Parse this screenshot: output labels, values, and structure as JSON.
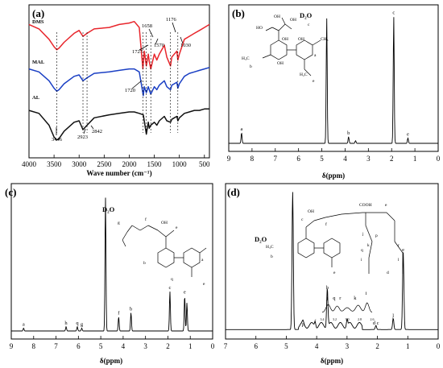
{
  "chart_data": [
    {
      "panel": "(a)",
      "type": "line",
      "xlabel": "Wave number (cm⁻¹)",
      "xlim": [
        4000,
        400
      ],
      "xticks": [
        "4000",
        "3500",
        "3000",
        "2500",
        "2000",
        "1500",
        "1000",
        "500"
      ],
      "series": [
        {
          "name": "DMS",
          "color": "#e8262c",
          "x": [
            4000,
            3800,
            3600,
            3500,
            3446,
            3400,
            3300,
            3100,
            3000,
            2923,
            2842,
            2700,
            2400,
            2200,
            2000,
            1900,
            1800,
            1727,
            1700,
            1658,
            1620,
            1600,
            1570,
            1500,
            1450,
            1400,
            1300,
            1250,
            1176,
            1150,
            1100,
            1050,
            1030,
            1000,
            900,
            800,
            700,
            600,
            500,
            400
          ],
          "y": [
            0.9,
            0.87,
            0.8,
            0.75,
            0.73,
            0.74,
            0.78,
            0.84,
            0.86,
            0.82,
            0.84,
            0.87,
            0.88,
            0.9,
            0.91,
            0.92,
            0.88,
            0.6,
            0.72,
            0.62,
            0.7,
            0.65,
            0.6,
            0.7,
            0.66,
            0.7,
            0.76,
            0.68,
            0.62,
            0.68,
            0.7,
            0.72,
            0.66,
            0.7,
            0.8,
            0.82,
            0.84,
            0.86,
            0.88,
            0.9
          ]
        },
        {
          "name": "MAL",
          "color": "#1a3fc4",
          "x": [
            4000,
            3800,
            3600,
            3500,
            3446,
            3400,
            3300,
            3100,
            3000,
            2923,
            2842,
            2700,
            2400,
            2200,
            2000,
            1900,
            1800,
            1720,
            1700,
            1658,
            1620,
            1600,
            1570,
            1500,
            1450,
            1400,
            1300,
            1250,
            1176,
            1150,
            1100,
            1050,
            1030,
            1000,
            900,
            800,
            700,
            600,
            500,
            400
          ],
          "y": [
            0.6,
            0.58,
            0.52,
            0.47,
            0.45,
            0.46,
            0.5,
            0.55,
            0.56,
            0.52,
            0.54,
            0.57,
            0.58,
            0.59,
            0.6,
            0.6,
            0.58,
            0.42,
            0.48,
            0.44,
            0.48,
            0.46,
            0.43,
            0.48,
            0.46,
            0.49,
            0.52,
            0.48,
            0.46,
            0.49,
            0.5,
            0.51,
            0.47,
            0.5,
            0.55,
            0.57,
            0.58,
            0.59,
            0.6,
            0.61
          ]
        },
        {
          "name": "AL",
          "color": "#111111",
          "x": [
            4000,
            3800,
            3600,
            3500,
            3446,
            3400,
            3300,
            3100,
            3000,
            2923,
            2842,
            2700,
            2400,
            2200,
            2000,
            1900,
            1800,
            1720,
            1700,
            1658,
            1620,
            1600,
            1570,
            1500,
            1450,
            1400,
            1300,
            1250,
            1176,
            1150,
            1100,
            1050,
            1030,
            1000,
            900,
            800,
            700,
            600,
            500,
            400
          ],
          "y": [
            0.32,
            0.3,
            0.22,
            0.14,
            0.12,
            0.13,
            0.18,
            0.24,
            0.25,
            0.19,
            0.22,
            0.27,
            0.29,
            0.3,
            0.31,
            0.31,
            0.3,
            0.29,
            0.25,
            0.16,
            0.24,
            0.2,
            0.22,
            0.24,
            0.22,
            0.25,
            0.28,
            0.25,
            0.24,
            0.26,
            0.27,
            0.28,
            0.25,
            0.27,
            0.3,
            0.31,
            0.32,
            0.32,
            0.33,
            0.33
          ]
        }
      ],
      "annotations": [
        "1727",
        "1658",
        "1176",
        "1570",
        "1030",
        "1720",
        "3446",
        "2923",
        "2842"
      ]
    },
    {
      "panel": "(b)",
      "type": "line",
      "xlabel": "δ(ppm)",
      "xlim": [
        9,
        0
      ],
      "xticks": [
        "9",
        "8",
        "7",
        "6",
        "5",
        "4",
        "3",
        "2",
        "1",
        "0"
      ],
      "solvent": "D₂O",
      "peaks": [
        {
          "label": "a",
          "ppm": 8.45,
          "h": 0.08
        },
        {
          "label": "D₂O",
          "ppm": 4.79,
          "h": 0.95
        },
        {
          "label": "b",
          "ppm": 3.85,
          "h": 0.05
        },
        {
          "label": "",
          "ppm": 3.55,
          "h": 0.02
        },
        {
          "label": "c",
          "ppm": 1.91,
          "h": 0.96
        },
        {
          "label": "e",
          "ppm": 1.3,
          "h": 0.04
        }
      ]
    },
    {
      "panel": "(c)",
      "type": "line",
      "xlabel": "δ(ppm)",
      "xlim": [
        9,
        0
      ],
      "xticks": [
        "9",
        "8",
        "7",
        "6",
        "5",
        "4",
        "3",
        "2",
        "1",
        "0"
      ],
      "solvent": "D₂O",
      "peaks": [
        {
          "label": "a",
          "ppm": 8.45,
          "h": 0.02
        },
        {
          "label": "h",
          "ppm": 6.55,
          "h": 0.03
        },
        {
          "label": "q",
          "ppm": 6.05,
          "h": 0.03
        },
        {
          "label": "g",
          "ppm": 5.85,
          "h": 0.02
        },
        {
          "label": "D₂O",
          "ppm": 4.79,
          "h": 0.95
        },
        {
          "label": "f",
          "ppm": 4.2,
          "h": 0.1
        },
        {
          "label": "b",
          "ppm": 3.65,
          "h": 0.13
        },
        {
          "label": "c",
          "ppm": 1.91,
          "h": 0.28
        },
        {
          "label": "e",
          "ppm": 1.25,
          "h": 0.25
        },
        {
          "label": "",
          "ppm": 1.15,
          "h": 0.2
        }
      ]
    },
    {
      "panel": "(d)",
      "type": "line",
      "xlabel": "δ(ppm)",
      "xlim": [
        7,
        0
      ],
      "xticks": [
        "7",
        "6",
        "5",
        "4",
        "3",
        "2",
        "1",
        "0"
      ],
      "solvent": "D₂O",
      "peaks": [
        {
          "label": "D₂O",
          "ppm": 4.79,
          "h": 0.98
        },
        {
          "label": "p",
          "ppm": 4.45,
          "h": 0.02
        },
        {
          "label": "f",
          "ppm": 4.05,
          "h": 0.04
        },
        {
          "label": "b",
          "ppm": 3.65,
          "h": 0.28
        },
        {
          "label": "",
          "ppm": 3.0,
          "h": 0.05
        },
        {
          "label": "d c",
          "ppm": 2.05,
          "h": 0.03
        },
        {
          "label": "l",
          "ppm": 1.48,
          "h": 0.08
        },
        {
          "label": "e",
          "ppm": 1.15,
          "h": 0.55
        }
      ],
      "inset_labels": [
        "j",
        "q",
        "r",
        "k",
        "i"
      ],
      "inset_ticks": [
        "3.4",
        "3.2",
        "3.0",
        "2.8",
        "2.6"
      ]
    }
  ]
}
